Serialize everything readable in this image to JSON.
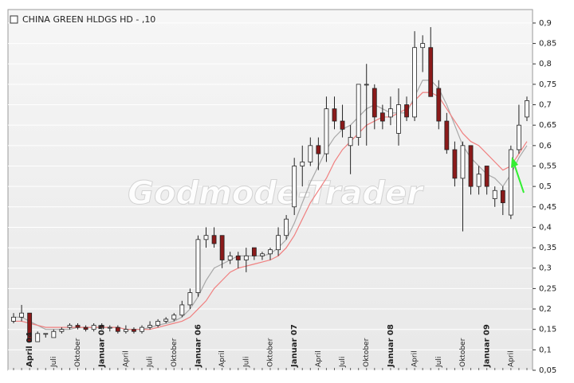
{
  "chart_data": {
    "type": "candlestick",
    "title": "CHINA GREEN HLDGS HD - ,10",
    "watermark": "Godmode-Trader",
    "categories": [
      null,
      null,
      "April 04",
      null,
      null,
      "Juli",
      null,
      null,
      "Oktober",
      null,
      null,
      "Januar 05",
      null,
      null,
      "April",
      null,
      null,
      "Juli",
      null,
      null,
      "Oktober",
      null,
      null,
      "Januar 06",
      null,
      null,
      "April",
      null,
      null,
      "Juli",
      null,
      null,
      "Oktober",
      null,
      null,
      "Januar 07",
      null,
      null,
      "April",
      null,
      null,
      "Juli",
      null,
      null,
      "Oktober",
      null,
      null,
      "Januar 08",
      null,
      null,
      "April",
      null,
      null,
      "Juli",
      null,
      null,
      "Oktober",
      null,
      null,
      "Januar 09",
      null,
      null,
      "April",
      null,
      null
    ],
    "open": [
      0.17,
      0.18,
      0.19,
      0.12,
      0.14,
      0.13,
      0.145,
      0.155,
      0.16,
      0.155,
      0.15,
      0.16,
      0.155,
      0.155,
      0.145,
      0.15,
      0.145,
      0.155,
      0.16,
      0.17,
      0.175,
      0.185,
      0.21,
      0.24,
      0.37,
      0.38,
      0.38,
      0.32,
      0.33,
      0.32,
      0.35,
      0.33,
      0.335,
      0.345,
      0.38,
      0.45,
      0.55,
      0.56,
      0.6,
      0.58,
      0.69,
      0.66,
      0.6,
      0.62,
      0.75,
      0.74,
      0.68,
      0.67,
      0.63,
      0.7,
      0.67,
      0.84,
      0.84,
      0.74,
      0.66,
      0.59,
      0.52,
      0.6,
      0.5,
      0.55,
      0.47,
      0.49,
      0.43,
      0.59,
      0.67
    ],
    "high": [
      0.19,
      0.21,
      0.19,
      0.145,
      0.14,
      0.15,
      0.155,
      0.165,
      0.165,
      0.16,
      0.165,
      0.165,
      0.16,
      0.16,
      0.16,
      0.155,
      0.16,
      0.17,
      0.175,
      0.18,
      0.19,
      0.22,
      0.25,
      0.38,
      0.4,
      0.4,
      0.38,
      0.34,
      0.34,
      0.35,
      0.35,
      0.34,
      0.35,
      0.4,
      0.43,
      0.57,
      0.6,
      0.62,
      0.62,
      0.72,
      0.72,
      0.7,
      0.65,
      0.75,
      0.8,
      0.75,
      0.7,
      0.72,
      0.74,
      0.72,
      0.88,
      0.87,
      0.89,
      0.76,
      0.68,
      0.61,
      0.61,
      0.6,
      0.55,
      0.55,
      0.5,
      0.5,
      0.6,
      0.7,
      0.72
    ],
    "low": [
      0.165,
      0.17,
      0.12,
      0.12,
      0.13,
      0.13,
      0.14,
      0.15,
      0.15,
      0.145,
      0.145,
      0.15,
      0.145,
      0.14,
      0.14,
      0.14,
      0.14,
      0.15,
      0.155,
      0.165,
      0.17,
      0.18,
      0.2,
      0.23,
      0.35,
      0.35,
      0.3,
      0.31,
      0.3,
      0.29,
      0.32,
      0.32,
      0.32,
      0.33,
      0.37,
      0.43,
      0.5,
      0.55,
      0.54,
      0.56,
      0.64,
      0.62,
      0.53,
      0.6,
      0.6,
      0.64,
      0.64,
      0.65,
      0.6,
      0.66,
      0.66,
      0.78,
      0.72,
      0.64,
      0.58,
      0.5,
      0.39,
      0.48,
      0.48,
      0.48,
      0.45,
      0.43,
      0.42,
      0.58,
      0.66
    ],
    "close": [
      0.18,
      0.19,
      0.12,
      0.14,
      0.14,
      0.145,
      0.15,
      0.16,
      0.155,
      0.15,
      0.16,
      0.155,
      0.155,
      0.145,
      0.15,
      0.145,
      0.155,
      0.16,
      0.17,
      0.175,
      0.185,
      0.21,
      0.24,
      0.37,
      0.38,
      0.36,
      0.32,
      0.33,
      0.32,
      0.33,
      0.33,
      0.335,
      0.345,
      0.38,
      0.42,
      0.55,
      0.56,
      0.6,
      0.58,
      0.69,
      0.66,
      0.64,
      0.62,
      0.75,
      0.75,
      0.67,
      0.66,
      0.69,
      0.7,
      0.67,
      0.84,
      0.85,
      0.72,
      0.66,
      0.59,
      0.52,
      0.6,
      0.5,
      0.53,
      0.5,
      0.49,
      0.46,
      0.59,
      0.65,
      0.71
    ],
    "up_color": "#ffffff",
    "down_color": "#8b1a1a",
    "ma_lines": [
      {
        "color": "#a8a8a8",
        "values": [
          0.18,
          0.18,
          0.17,
          0.16,
          0.15,
          0.15,
          0.15,
          0.15,
          0.155,
          0.155,
          0.155,
          0.155,
          0.155,
          0.155,
          0.15,
          0.15,
          0.15,
          0.155,
          0.16,
          0.165,
          0.17,
          0.18,
          0.2,
          0.23,
          0.27,
          0.3,
          0.31,
          0.32,
          0.33,
          0.33,
          0.33,
          0.33,
          0.335,
          0.35,
          0.37,
          0.41,
          0.46,
          0.51,
          0.55,
          0.59,
          0.62,
          0.64,
          0.65,
          0.67,
          0.69,
          0.7,
          0.69,
          0.68,
          0.68,
          0.68,
          0.72,
          0.76,
          0.76,
          0.74,
          0.7,
          0.65,
          0.6,
          0.57,
          0.55,
          0.53,
          0.52,
          0.5,
          0.53,
          0.57,
          0.6
        ]
      },
      {
        "color": "#f08080",
        "values": [
          0.17,
          0.17,
          0.165,
          0.16,
          0.155,
          0.155,
          0.155,
          0.155,
          0.155,
          0.155,
          0.155,
          0.155,
          0.155,
          0.155,
          0.15,
          0.15,
          0.15,
          0.15,
          0.155,
          0.16,
          0.165,
          0.17,
          0.18,
          0.2,
          0.22,
          0.25,
          0.27,
          0.29,
          0.3,
          0.305,
          0.31,
          0.315,
          0.32,
          0.33,
          0.35,
          0.38,
          0.42,
          0.46,
          0.49,
          0.52,
          0.56,
          0.59,
          0.61,
          0.63,
          0.65,
          0.66,
          0.67,
          0.67,
          0.68,
          0.69,
          0.71,
          0.73,
          0.73,
          0.72,
          0.69,
          0.66,
          0.63,
          0.61,
          0.6,
          0.58,
          0.56,
          0.54,
          0.55,
          0.58,
          0.61
        ]
      }
    ],
    "ylim": [
      0.05,
      0.933
    ],
    "yticks": [
      {
        "value": 0.9,
        "label": "0,9"
      },
      {
        "value": 0.85,
        "label": "0,85"
      },
      {
        "value": 0.8,
        "label": "0,8"
      },
      {
        "value": 0.75,
        "label": "0,75"
      },
      {
        "value": 0.7,
        "label": "0,7"
      },
      {
        "value": 0.65,
        "label": "0,65"
      },
      {
        "value": 0.6,
        "label": "0,6"
      },
      {
        "value": 0.55,
        "label": "0,55"
      },
      {
        "value": 0.5,
        "label": "0,5"
      },
      {
        "value": 0.45,
        "label": "0,45"
      },
      {
        "value": 0.4,
        "label": "0,4"
      },
      {
        "value": 0.35,
        "label": "0,35"
      },
      {
        "value": 0.3,
        "label": "0,3"
      },
      {
        "value": 0.25,
        "label": "0,25"
      },
      {
        "value": 0.2,
        "label": "0,2"
      },
      {
        "value": 0.15,
        "label": "0,15"
      },
      {
        "value": 0.1,
        "label": "0,1"
      },
      {
        "value": 0.05,
        "label": "0,05"
      }
    ],
    "grid": true
  }
}
